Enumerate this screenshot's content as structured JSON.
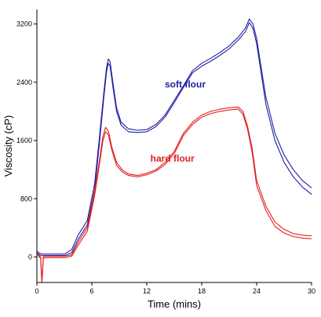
{
  "chart_data": {
    "type": "line",
    "title": "",
    "xlabel": "Time (mins)",
    "ylabel": "Viscosity (cP)",
    "xlim": [
      0,
      30
    ],
    "ylim": [
      -350,
      3400
    ],
    "xticks": [
      0,
      6,
      12,
      18,
      24,
      30
    ],
    "yticks": [
      0,
      800,
      1600,
      2400,
      3200
    ],
    "grid": false,
    "legend": "none",
    "annotations": [
      {
        "text": "soft flour",
        "x": 16.2,
        "y": 2330,
        "color": "#1f1fa3"
      },
      {
        "text": "hard flour",
        "x": 14.8,
        "y": 1310,
        "color": "#e02020"
      }
    ],
    "series": [
      {
        "color": "#1f1fa3",
        "x": [
          0,
          0.2,
          0.5,
          0.8,
          1.0,
          2.0,
          3.0,
          3.8,
          4.5,
          5.5,
          6.3,
          6.8,
          7.3,
          7.6,
          7.8,
          8.0,
          8.3,
          8.7,
          9.2,
          10.0,
          11.0,
          12.0,
          13.0,
          14.0,
          15.0,
          16.0,
          17.0,
          18.0,
          19.0,
          20.0,
          21.0,
          22.0,
          22.8,
          23.2,
          23.6,
          24.0,
          24.5,
          25.0,
          26.0,
          27.0,
          28.0,
          29.0,
          30.0
        ],
        "y": [
          80,
          60,
          40,
          40,
          40,
          40,
          40,
          100,
          300,
          500,
          1000,
          1600,
          2250,
          2600,
          2720,
          2680,
          2400,
          2050,
          1850,
          1760,
          1740,
          1750,
          1820,
          1950,
          2150,
          2350,
          2560,
          2660,
          2730,
          2810,
          2900,
          3020,
          3150,
          3270,
          3200,
          3000,
          2600,
          2200,
          1700,
          1400,
          1200,
          1050,
          950
        ]
      },
      {
        "color": "#1f1fa3",
        "x": [
          0,
          0.2,
          0.5,
          0.8,
          1.0,
          2.0,
          3.0,
          3.8,
          4.5,
          5.5,
          6.3,
          6.8,
          7.3,
          7.6,
          7.8,
          8.0,
          8.3,
          8.7,
          9.2,
          10.0,
          11.0,
          12.0,
          13.0,
          14.0,
          15.0,
          16.0,
          17.0,
          18.0,
          19.0,
          20.0,
          21.0,
          22.0,
          22.8,
          23.2,
          23.6,
          24.0,
          24.5,
          25.0,
          26.0,
          27.0,
          28.0,
          29.0,
          30.0
        ],
        "y": [
          60,
          40,
          20,
          20,
          20,
          20,
          20,
          60,
          240,
          440,
          920,
          1520,
          2180,
          2540,
          2660,
          2620,
          2340,
          2000,
          1810,
          1720,
          1710,
          1720,
          1790,
          1920,
          2120,
          2330,
          2530,
          2620,
          2690,
          2770,
          2860,
          2980,
          3100,
          3220,
          3140,
          2930,
          2520,
          2100,
          1600,
          1300,
          1100,
          960,
          860
        ]
      },
      {
        "color": "#e02020",
        "x": [
          0,
          0.2,
          0.4,
          0.55,
          0.7,
          0.9,
          1.2,
          2.0,
          3.0,
          3.8,
          4.5,
          5.5,
          6.3,
          6.8,
          7.2,
          7.5,
          7.8,
          8.2,
          8.7,
          9.3,
          10.0,
          11.0,
          12.0,
          13.0,
          14.0,
          15.0,
          16.0,
          17.0,
          18.0,
          19.0,
          20.0,
          21.0,
          22.0,
          22.5,
          23.0,
          23.5,
          24.0,
          25.0,
          26.0,
          27.0,
          28.0,
          29.0,
          30.0
        ],
        "y": [
          60,
          30,
          0,
          -350,
          0,
          10,
          10,
          10,
          10,
          30,
          200,
          400,
          900,
          1300,
          1650,
          1780,
          1730,
          1500,
          1300,
          1200,
          1140,
          1120,
          1150,
          1200,
          1300,
          1450,
          1700,
          1850,
          1950,
          2000,
          2030,
          2050,
          2060,
          2000,
          1800,
          1500,
          1050,
          700,
          480,
          380,
          320,
          300,
          290
        ]
      },
      {
        "color": "#e02020",
        "x": [
          0,
          0.2,
          0.4,
          0.55,
          0.7,
          0.9,
          1.2,
          2.0,
          3.0,
          3.8,
          4.5,
          5.5,
          6.3,
          6.8,
          7.2,
          7.5,
          7.8,
          8.2,
          8.7,
          9.3,
          10.0,
          11.0,
          12.0,
          13.0,
          14.0,
          15.0,
          16.0,
          17.0,
          18.0,
          19.0,
          20.0,
          21.0,
          22.0,
          22.5,
          23.0,
          23.5,
          24.0,
          25.0,
          26.0,
          27.0,
          28.0,
          29.0,
          30.0
        ],
        "y": [
          40,
          10,
          -20,
          -350,
          -20,
          -10,
          -10,
          -10,
          -10,
          10,
          160,
          350,
          840,
          1240,
          1590,
          1720,
          1680,
          1460,
          1260,
          1170,
          1120,
          1100,
          1130,
          1180,
          1270,
          1420,
          1670,
          1820,
          1920,
          1970,
          2000,
          2020,
          2030,
          1960,
          1760,
          1440,
          980,
          640,
          420,
          330,
          280,
          260,
          250
        ]
      }
    ]
  }
}
